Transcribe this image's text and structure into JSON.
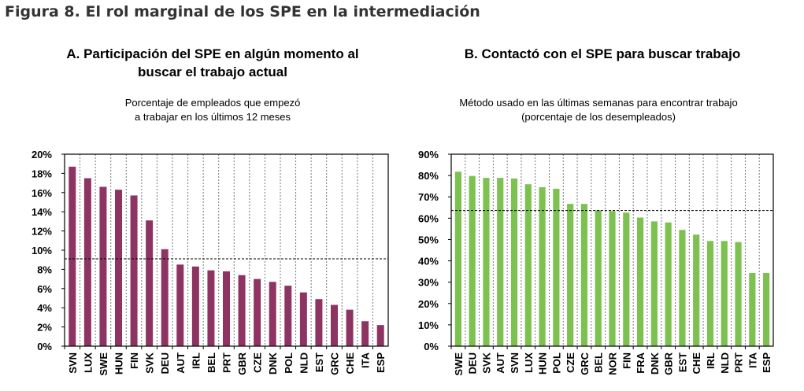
{
  "figure_title": "Figura 8. El rol marginal de los SPE en la intermediación",
  "chart_data": [
    {
      "type": "bar",
      "title": "A. Participación del SPE en algún momento al buscar el trabajo actual",
      "title_lines": [
        "A. Participación del SPE en algún momento al",
        "buscar el trabajo actual"
      ],
      "subtitle_lines": [
        "Porcentaje de empleados que empezó",
        "a trabajar en los últimos 12 meses"
      ],
      "categories": [
        "SVN",
        "LUX",
        "SWE",
        "HUN",
        "FIN",
        "SVK",
        "DEU",
        "AUT",
        "IRL",
        "BEL",
        "PRT",
        "GBR",
        "CZE",
        "DNK",
        "POL",
        "NLD",
        "EST",
        "GRC",
        "CHE",
        "ITA",
        "ESP"
      ],
      "values": [
        18.7,
        17.5,
        16.6,
        16.3,
        15.7,
        13.1,
        10.1,
        8.5,
        8.3,
        7.9,
        7.8,
        7.4,
        7.0,
        6.7,
        6.3,
        5.6,
        4.9,
        4.3,
        3.8,
        2.6,
        2.2
      ],
      "reference_line": 9.1,
      "ylim": [
        0,
        20
      ],
      "yticks": [
        "0%",
        "2%",
        "4%",
        "6%",
        "8%",
        "10%",
        "12%",
        "14%",
        "16%",
        "18%",
        "20%"
      ],
      "color": "#8e3463",
      "xlabel": "",
      "ylabel": "",
      "grid": "vertical dotted"
    },
    {
      "type": "bar",
      "title": "B. Contactó con el SPE para buscar trabajo",
      "title_lines": [
        "B. Contactó con el SPE para buscar trabajo"
      ],
      "subtitle_lines": [
        "Método usado en las últimas semanas para encontrar trabajo",
        "(porcentaje de los desempleados)"
      ],
      "categories": [
        "SWE",
        "DEU",
        "SVK",
        "AUT",
        "SVN",
        "LUX",
        "HUN",
        "POL",
        "CZE",
        "GRC",
        "BEL",
        "NOR",
        "FIN",
        "FRA",
        "DNK",
        "GBR",
        "EST",
        "CHE",
        "IRL",
        "NLD",
        "PRT",
        "ITA",
        "ESP"
      ],
      "values": [
        81.8,
        79.8,
        78.9,
        78.9,
        78.6,
        75.9,
        74.5,
        73.8,
        66.7,
        66.7,
        63.7,
        63.3,
        62.6,
        60.3,
        58.5,
        58.0,
        54.5,
        52.3,
        49.3,
        49.3,
        48.8,
        34.3,
        34.3
      ],
      "reference_line": 63.6,
      "ylim": [
        0,
        90
      ],
      "yticks": [
        "0%",
        "10%",
        "20%",
        "30%",
        "40%",
        "50%",
        "60%",
        "70%",
        "80%",
        "90%"
      ],
      "color": "#7dc151",
      "xlabel": "",
      "ylabel": "",
      "grid": "vertical dotted"
    }
  ]
}
